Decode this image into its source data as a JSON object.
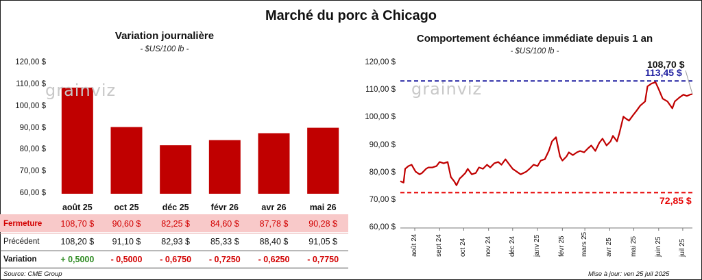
{
  "main_title": "Marché du porc à Chicago",
  "footer": {
    "source": "Source: CME Group",
    "updated": "Mise à jour: ven 25 juil 2025"
  },
  "watermark": "grainviz",
  "colors": {
    "bar": "#c00000",
    "line": "#c00000",
    "pink_row": "#f8c9c9",
    "blue": "#1f1fa0",
    "red": "#e60000"
  },
  "chart_data": [
    {
      "type": "bar",
      "title": "Variation journalière",
      "subtitle": "- $US/100 lb -",
      "categories": [
        "août 25",
        "oct 25",
        "déc 25",
        "févr 26",
        "avr 26",
        "mai 26"
      ],
      "values": [
        108.7,
        90.6,
        82.25,
        84.6,
        87.78,
        90.28
      ],
      "ylim": [
        60,
        120
      ],
      "yticks": [
        "60,00 $",
        "70,00 $",
        "80,00 $",
        "90,00 $",
        "100,00 $",
        "110,00 $",
        "120,00 $"
      ],
      "table": {
        "rows": [
          {
            "label": "Fermeture",
            "values": [
              "108,70  $",
              "90,60  $",
              "82,25  $",
              "84,60  $",
              "87,78  $",
              "90,28  $"
            ]
          },
          {
            "label": "Précédent",
            "values": [
              "108,20  $",
              "91,10  $",
              "82,93  $",
              "85,33  $",
              "88,40  $",
              "91,05  $"
            ]
          },
          {
            "label": "Variation",
            "values": [
              "+ 0,5000",
              "- 0,5000",
              "- 0,6750",
              "- 0,7250",
              "- 0,6250",
              "- 0,7750"
            ]
          }
        ]
      }
    },
    {
      "type": "line",
      "title": "Comportement  échéance immédiate depuis 1 an",
      "subtitle": "- $US/100 lb -",
      "ylim": [
        60,
        120
      ],
      "yticks": [
        "60,00 $",
        "70,00 $",
        "80,00 $",
        "90,00 $",
        "100,00 $",
        "110,00 $",
        "120,00 $"
      ],
      "xticks": [
        "août 24",
        "sept 24",
        "oct 24",
        "nov 24",
        "déc 24",
        "janv 25",
        "févr 25",
        "mars 25",
        "avr 25",
        "mai 25",
        "juin 25",
        "juil 25"
      ],
      "x_range": [
        "2024-07-26",
        "2025-07-25"
      ],
      "reference_lines": [
        {
          "value": 113.45,
          "label": "113,45 $",
          "color": "#1f1fa0"
        },
        {
          "value": 72.85,
          "label": "72,85 $",
          "color": "#e60000"
        }
      ],
      "last_value_label": "108,70 $",
      "series": [
        {
          "x": [
            "2024-07-26",
            "2024-07-30",
            "2024-08-01",
            "2024-08-05",
            "2024-08-09",
            "2024-08-14",
            "2024-08-19",
            "2024-08-22",
            "2024-08-27",
            "2024-08-30",
            "2024-09-04",
            "2024-09-09",
            "2024-09-13",
            "2024-09-18",
            "2024-09-23",
            "2024-09-27",
            "2024-10-01",
            "2024-10-04",
            "2024-10-08",
            "2024-10-10",
            "2024-10-15",
            "2024-10-18",
            "2024-10-23",
            "2024-10-28",
            "2024-11-01",
            "2024-11-06",
            "2024-11-11",
            "2024-11-15",
            "2024-11-20",
            "2024-11-25",
            "2024-11-29",
            "2024-12-04",
            "2024-12-09",
            "2024-12-13",
            "2024-12-18",
            "2024-12-23",
            "2024-12-30",
            "2025-01-03",
            "2025-01-08",
            "2025-01-13",
            "2025-01-17",
            "2025-01-22",
            "2025-01-27",
            "2025-01-31",
            "2025-02-05",
            "2025-02-10",
            "2025-02-13",
            "2025-02-18",
            "2025-02-21",
            "2025-02-26",
            "2025-03-03",
            "2025-03-07",
            "2025-03-12",
            "2025-03-17",
            "2025-03-21",
            "2025-03-26",
            "2025-03-31",
            "2025-04-04",
            "2025-04-09",
            "2025-04-14",
            "2025-04-17",
            "2025-04-22",
            "2025-04-25",
            "2025-04-30",
            "2025-05-02",
            "2025-05-07",
            "2025-05-12",
            "2025-05-16",
            "2025-05-21",
            "2025-05-27",
            "2025-05-30",
            "2025-06-04",
            "2025-06-09",
            "2025-06-13",
            "2025-06-18",
            "2025-06-24",
            "2025-06-30",
            "2025-07-03",
            "2025-07-09",
            "2025-07-14",
            "2025-07-18",
            "2025-07-22",
            "2025-07-25"
          ],
          "y": [
            77.0,
            76.5,
            81.5,
            82.5,
            83.0,
            80.5,
            79.5,
            80.0,
            81.5,
            82.0,
            82.0,
            82.5,
            84.0,
            83.5,
            84.0,
            78.5,
            77.0,
            75.5,
            78.0,
            78.5,
            80.0,
            81.5,
            79.5,
            80.0,
            82.0,
            81.5,
            83.0,
            82.0,
            83.5,
            84.0,
            83.0,
            85.0,
            83.0,
            81.5,
            80.5,
            79.5,
            80.5,
            81.5,
            83.0,
            82.5,
            84.5,
            85.0,
            88.0,
            91.5,
            93.0,
            86.0,
            84.5,
            86.0,
            87.5,
            86.5,
            87.5,
            88.0,
            87.5,
            89.0,
            90.0,
            88.0,
            91.0,
            92.5,
            90.0,
            91.5,
            93.5,
            91.5,
            94.5,
            100.5,
            100.0,
            99.0,
            101.0,
            102.5,
            104.5,
            106.0,
            111.5,
            112.5,
            113.0,
            110.5,
            107.0,
            106.0,
            103.5,
            106.0,
            107.5,
            108.5,
            108.0,
            108.5,
            108.7
          ]
        }
      ]
    }
  ]
}
